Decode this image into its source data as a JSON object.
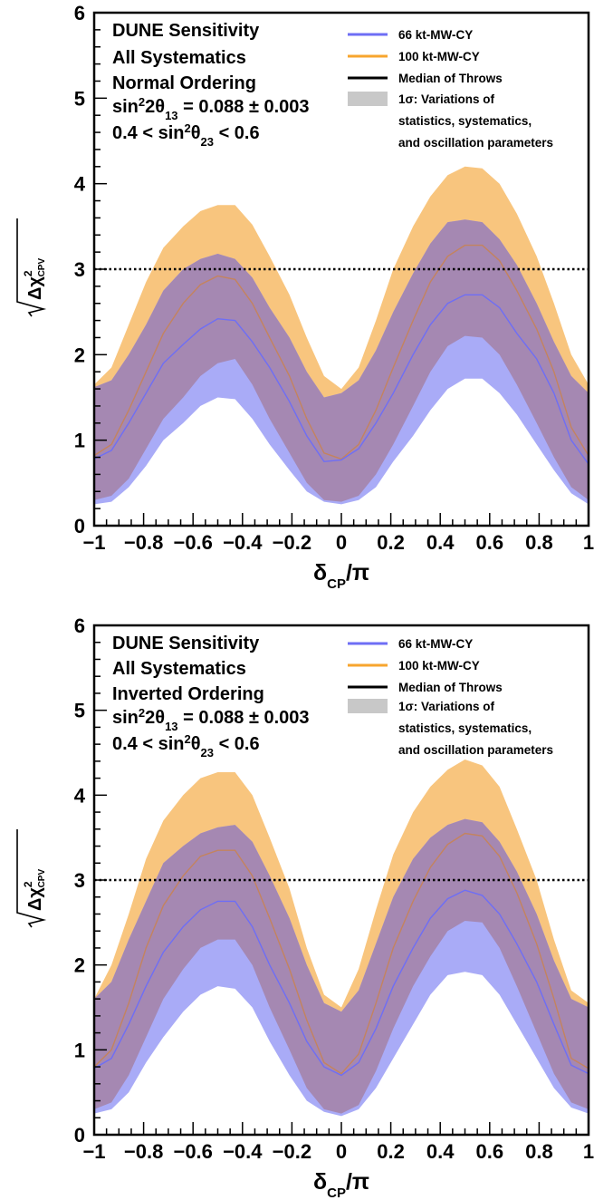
{
  "chart_data": [
    {
      "type": "area",
      "panel": "top",
      "xlabel_main": "δ",
      "xlabel_sub": "CP",
      "xlabel_tail": "/π",
      "ylabel_main": "Δχ",
      "ylabel_sup": "2",
      "ylabel_sub": "CPV",
      "xlim": [
        -1,
        1
      ],
      "ylim": [
        0,
        6
      ],
      "xticks": [
        "−1",
        "−0.8",
        "−0.6",
        "−0.4",
        "−0.2",
        "0",
        "0.2",
        "0.4",
        "0.6",
        "0.8",
        "1"
      ],
      "yticks": [
        "0",
        "1",
        "2",
        "3",
        "4",
        "5",
        "6"
      ],
      "reference_line": 3,
      "info": {
        "line1": "DUNE Sensitivity",
        "line2": "All Systematics",
        "line3": "Normal Ordering",
        "theta13_a": "sin",
        "theta13_b": "2",
        "theta13_c": "2θ",
        "theta13_d": "13",
        "theta13_e": " = 0.088 ± 0.003",
        "theta23_a": "0.4 < sin",
        "theta23_b": "2",
        "theta23_c": "θ",
        "theta23_d": "23",
        "theta23_e": " < 0.6"
      },
      "legend": {
        "item1": "66 kt-MW-CY",
        "item2": "100 kt-MW-CY",
        "item3": "Median of Throws",
        "item4": "1σ: Variations of",
        "item5": "statistics, systematics,",
        "item6": "and oscillation parameters"
      },
      "colors": {
        "series66": "#6e6ef5",
        "series100": "#f7a52e",
        "band66": "#a9abf7",
        "band100": "#f8c57e",
        "overlap": "#a588b2",
        "median100": "#c4835e",
        "line": "#000000"
      },
      "x": [
        -1,
        -0.93,
        -0.86,
        -0.79,
        -0.72,
        -0.64,
        -0.57,
        -0.5,
        -0.43,
        -0.36,
        -0.29,
        -0.21,
        -0.14,
        -0.07,
        0,
        0.07,
        0.14,
        0.21,
        0.29,
        0.36,
        0.43,
        0.5,
        0.57,
        0.64,
        0.71,
        0.79,
        0.86,
        0.93,
        1
      ],
      "series": [
        {
          "name": "66 kt-MW-CY",
          "median": [
            0.78,
            0.88,
            1.2,
            1.55,
            1.9,
            2.12,
            2.3,
            2.42,
            2.4,
            2.15,
            1.85,
            1.45,
            1.05,
            0.75,
            0.77,
            0.9,
            1.2,
            1.55,
            2.0,
            2.35,
            2.6,
            2.7,
            2.7,
            2.55,
            2.25,
            1.95,
            1.55,
            1.0,
            0.72
          ],
          "lower": [
            0.25,
            0.28,
            0.45,
            0.7,
            1.0,
            1.2,
            1.4,
            1.5,
            1.48,
            1.25,
            0.95,
            0.65,
            0.4,
            0.28,
            0.25,
            0.3,
            0.45,
            0.75,
            1.05,
            1.35,
            1.6,
            1.72,
            1.72,
            1.55,
            1.3,
            0.95,
            0.65,
            0.38,
            0.25
          ],
          "upper": [
            1.62,
            1.7,
            2.0,
            2.35,
            2.75,
            3.0,
            3.12,
            3.18,
            3.12,
            2.9,
            2.55,
            2.2,
            1.8,
            1.5,
            1.55,
            1.7,
            2.05,
            2.5,
            2.95,
            3.3,
            3.55,
            3.58,
            3.55,
            3.35,
            3.05,
            2.6,
            2.15,
            1.75,
            1.55
          ]
        },
        {
          "name": "100 kt-MW-CY",
          "median": [
            0.82,
            0.95,
            1.35,
            1.8,
            2.25,
            2.6,
            2.82,
            2.92,
            2.88,
            2.6,
            2.2,
            1.75,
            1.25,
            0.85,
            0.78,
            0.95,
            1.35,
            1.85,
            2.4,
            2.85,
            3.15,
            3.28,
            3.28,
            3.1,
            2.75,
            2.3,
            1.8,
            1.15,
            0.82
          ],
          "lower": [
            0.3,
            0.35,
            0.55,
            0.9,
            1.25,
            1.5,
            1.75,
            1.9,
            1.95,
            1.65,
            1.25,
            0.85,
            0.5,
            0.3,
            0.28,
            0.35,
            0.6,
            0.95,
            1.4,
            1.8,
            2.1,
            2.22,
            2.2,
            2.0,
            1.65,
            1.2,
            0.8,
            0.45,
            0.3
          ],
          "upper": [
            1.65,
            1.85,
            2.35,
            2.85,
            3.25,
            3.5,
            3.68,
            3.75,
            3.75,
            3.52,
            3.15,
            2.7,
            2.2,
            1.75,
            1.6,
            1.85,
            2.4,
            3.0,
            3.5,
            3.85,
            4.1,
            4.2,
            4.18,
            4.0,
            3.65,
            3.15,
            2.6,
            2.0,
            1.65
          ]
        }
      ]
    },
    {
      "type": "area",
      "panel": "bottom",
      "xlabel_main": "δ",
      "xlabel_sub": "CP",
      "xlabel_tail": "/π",
      "ylabel_main": "Δχ",
      "ylabel_sup": "2",
      "ylabel_sub": "CPV",
      "xlim": [
        -1,
        1
      ],
      "ylim": [
        0,
        6
      ],
      "xticks": [
        "−1",
        "−0.8",
        "−0.6",
        "−0.4",
        "−0.2",
        "0",
        "0.2",
        "0.4",
        "0.6",
        "0.8",
        "1"
      ],
      "yticks": [
        "0",
        "1",
        "2",
        "3",
        "4",
        "5",
        "6"
      ],
      "reference_line": 3,
      "info": {
        "line1": "DUNE Sensitivity",
        "line2": "All Systematics",
        "line3": "Inverted Ordering",
        "theta13_a": "sin",
        "theta13_b": "2",
        "theta13_c": "2θ",
        "theta13_d": "13",
        "theta13_e": " = 0.088 ± 0.003",
        "theta23_a": "0.4 < sin",
        "theta23_b": "2",
        "theta23_c": "θ",
        "theta23_d": "23",
        "theta23_e": " < 0.6"
      },
      "legend": {
        "item1": "66 kt-MW-CY",
        "item2": "100 kt-MW-CY",
        "item3": "Median of Throws",
        "item4": "1σ: Variations of",
        "item5": "statistics, systematics,",
        "item6": "and oscillation parameters"
      },
      "colors": {
        "series66": "#6e6ef5",
        "series100": "#f7a52e",
        "band66": "#a9abf7",
        "band100": "#f8c57e",
        "overlap": "#a588b2",
        "median100": "#c4835e",
        "line": "#000000"
      },
      "x": [
        -1,
        -0.93,
        -0.86,
        -0.79,
        -0.72,
        -0.64,
        -0.57,
        -0.5,
        -0.43,
        -0.36,
        -0.29,
        -0.21,
        -0.14,
        -0.07,
        0,
        0.07,
        0.14,
        0.21,
        0.29,
        0.36,
        0.43,
        0.5,
        0.57,
        0.64,
        0.71,
        0.79,
        0.86,
        0.93,
        1
      ],
      "series": [
        {
          "name": "66 kt-MW-CY",
          "median": [
            0.78,
            0.9,
            1.3,
            1.75,
            2.15,
            2.45,
            2.65,
            2.75,
            2.75,
            2.45,
            2.0,
            1.55,
            1.1,
            0.8,
            0.7,
            0.85,
            1.25,
            1.75,
            2.2,
            2.55,
            2.78,
            2.88,
            2.82,
            2.6,
            2.25,
            1.8,
            1.3,
            0.82,
            0.72
          ],
          "lower": [
            0.25,
            0.3,
            0.5,
            0.85,
            1.15,
            1.45,
            1.65,
            1.75,
            1.72,
            1.5,
            1.1,
            0.7,
            0.4,
            0.27,
            0.22,
            0.3,
            0.55,
            0.9,
            1.3,
            1.65,
            1.88,
            1.92,
            1.88,
            1.65,
            1.3,
            0.9,
            0.55,
            0.32,
            0.25
          ],
          "upper": [
            1.6,
            1.8,
            2.3,
            2.75,
            3.2,
            3.4,
            3.55,
            3.62,
            3.65,
            3.45,
            3.05,
            2.55,
            2.0,
            1.55,
            1.45,
            1.7,
            2.25,
            2.8,
            3.25,
            3.5,
            3.65,
            3.72,
            3.68,
            3.45,
            3.1,
            2.6,
            2.05,
            1.6,
            1.5
          ]
        },
        {
          "name": "100 kt-MW-CY",
          "median": [
            0.8,
            1.0,
            1.55,
            2.2,
            2.7,
            3.05,
            3.28,
            3.35,
            3.35,
            3.05,
            2.55,
            1.95,
            1.35,
            0.85,
            0.72,
            0.95,
            1.55,
            2.2,
            2.75,
            3.15,
            3.42,
            3.55,
            3.52,
            3.28,
            2.85,
            2.25,
            1.6,
            0.9,
            0.78
          ],
          "lower": [
            0.3,
            0.38,
            0.7,
            1.15,
            1.6,
            1.95,
            2.2,
            2.3,
            2.3,
            2.0,
            1.5,
            1.0,
            0.55,
            0.3,
            0.25,
            0.35,
            0.75,
            1.25,
            1.75,
            2.1,
            2.4,
            2.52,
            2.5,
            2.2,
            1.75,
            1.2,
            0.72,
            0.38,
            0.3
          ],
          "upper": [
            1.6,
            2.0,
            2.6,
            3.25,
            3.7,
            4.0,
            4.2,
            4.27,
            4.27,
            4.0,
            3.5,
            2.9,
            2.2,
            1.65,
            1.5,
            1.95,
            2.65,
            3.3,
            3.8,
            4.1,
            4.3,
            4.42,
            4.35,
            4.1,
            3.6,
            3.0,
            2.3,
            1.7,
            1.55
          ]
        }
      ]
    }
  ]
}
